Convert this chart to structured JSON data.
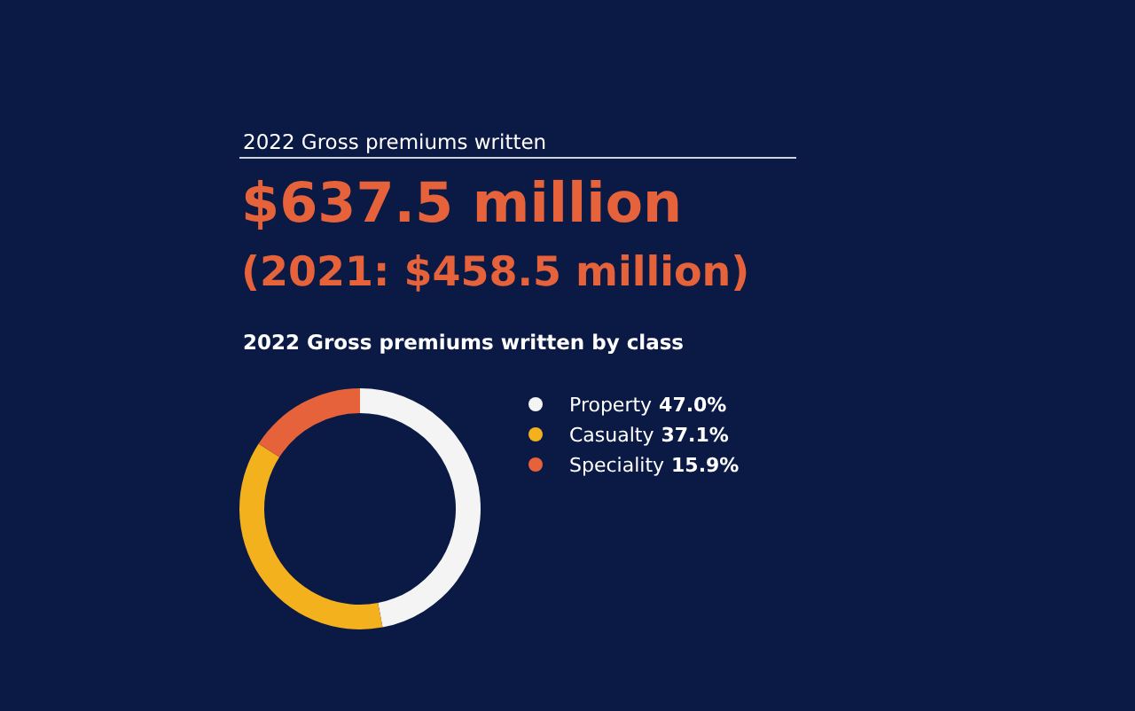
{
  "chart_data": {
    "type": "donut",
    "title": "2022 Gross premiums written",
    "subtitle": "$637.5 million",
    "annotations": [
      "(2021: $458.5 million)",
      "2022 Gross premiums written by class"
    ],
    "categories": [
      "Property",
      "Casualty",
      "Speciality"
    ],
    "values": [
      47.0,
      37.1,
      15.9
    ],
    "value_labels": [
      "47.0%",
      "37.1%",
      "15.9%"
    ],
    "colors": [
      "#f4f4f4",
      "#f3b11e",
      "#e5623a"
    ],
    "legend": "right"
  }
}
